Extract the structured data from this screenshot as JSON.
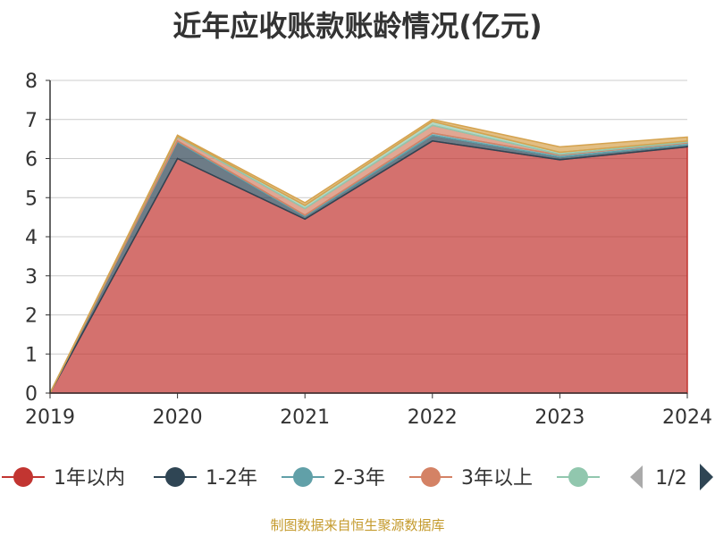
{
  "chart_data": {
    "type": "area",
    "stacked": true,
    "title": "近年应收账款账龄情况(亿元)",
    "x": [
      "2019",
      "2020",
      "2021",
      "2022",
      "2023",
      "2024"
    ],
    "ylim": [
      0,
      8
    ],
    "yticks": [
      "0",
      "1",
      "2",
      "3",
      "4",
      "5",
      "6",
      "7",
      "8"
    ],
    "grid": true,
    "legend_position": "bottom",
    "series": [
      {
        "name": "1年以内",
        "color": "#c23531",
        "values": [
          0,
          6.0,
          4.45,
          6.45,
          5.97,
          6.3
        ]
      },
      {
        "name": "1-2年",
        "color": "#2f4554",
        "values": [
          0,
          0.42,
          0.07,
          0.14,
          0.07,
          0.05
        ]
      },
      {
        "name": "2-3年",
        "color": "#61a0a8",
        "values": [
          0,
          0.03,
          0.03,
          0.06,
          0.05,
          0.05
        ]
      },
      {
        "name": "3年以上",
        "color": "#d48265",
        "values": [
          0,
          0.1,
          0.17,
          0.2,
          0.02,
          0.02
        ]
      },
      {
        "name": "",
        "color": "#91c7ae",
        "values": [
          0,
          0.02,
          0.08,
          0.1,
          0.05,
          0.03
        ]
      },
      {
        "name": "",
        "color": "#d5a34f",
        "values": [
          0,
          0.03,
          0.07,
          0.05,
          0.14,
          0.1
        ]
      }
    ]
  },
  "legend": {
    "page_indicator": "1/2",
    "prev_icon": "triangle-left-icon",
    "next_icon": "triangle-right-icon"
  },
  "footer": {
    "source": "制图数据来自恒生聚源数据库"
  }
}
